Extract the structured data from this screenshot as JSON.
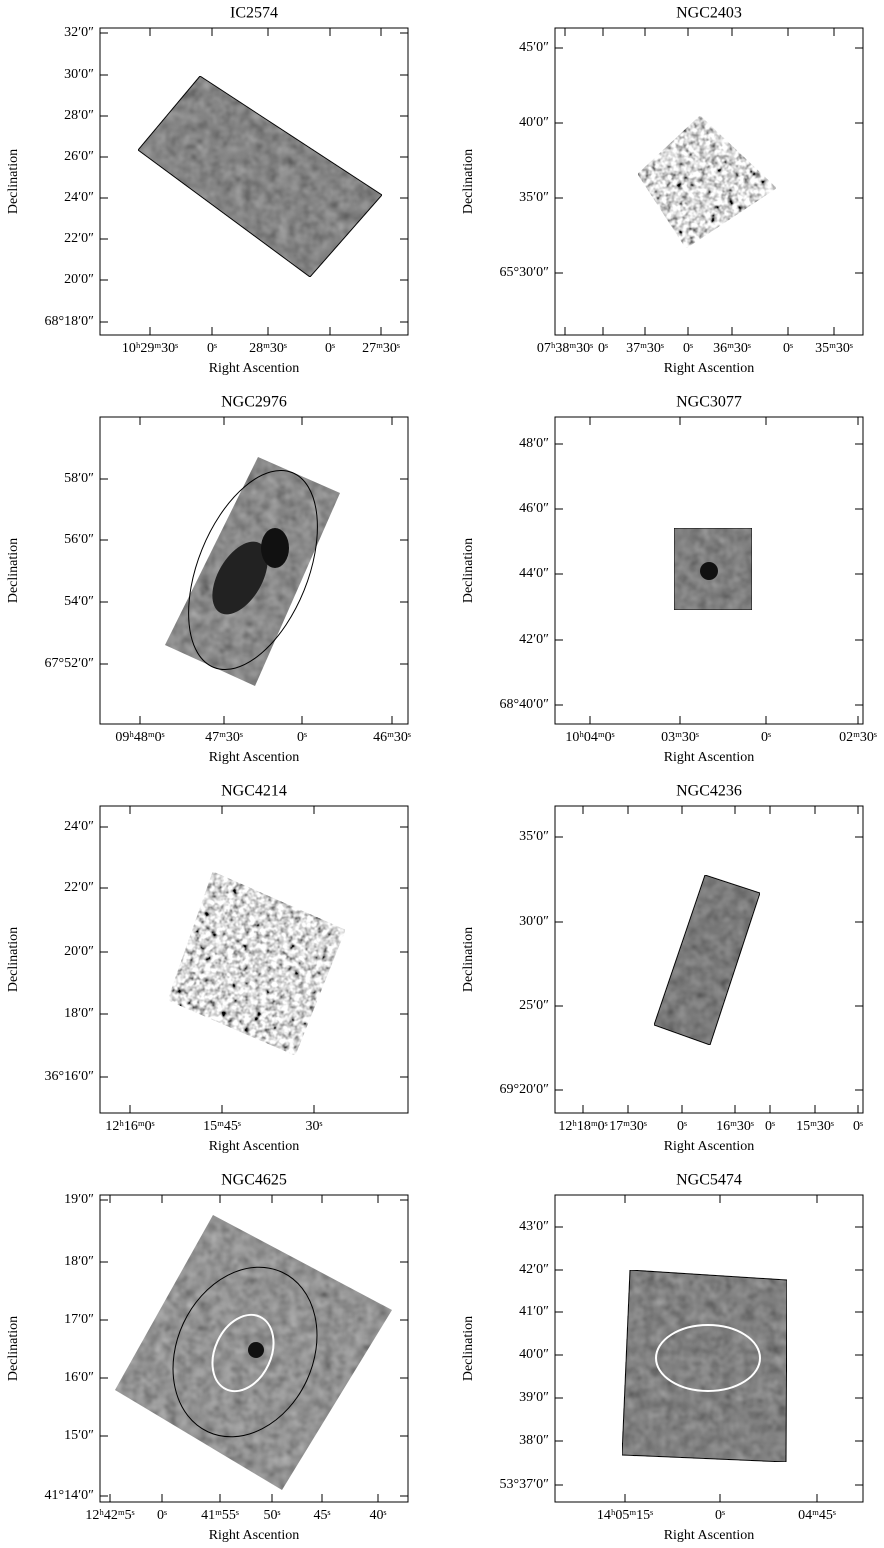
{
  "panels": [
    {
      "title": "IC2574",
      "xlabel": "Right Ascention",
      "ylabel": "Declination",
      "xtick_labels": [
        "10ʰ29ᵐ30ˢ",
        "0ˢ",
        "28ᵐ30ˢ",
        "0ˢ",
        "27ᵐ30ˢ"
      ],
      "ytick_labels": [
        "32′0″",
        "30′0″",
        "28′0″",
        "26′0″",
        "24′0″",
        "22′0″",
        "20′0″",
        "68°18′0″"
      ]
    },
    {
      "title": "NGC2403",
      "xlabel": "Right Ascention",
      "ylabel": "Declination",
      "xtick_labels": [
        "07ʰ38ᵐ30ˢ",
        "0ˢ",
        "37ᵐ30ˢ",
        "0ˢ",
        "36ᵐ30ˢ",
        "0ˢ",
        "35ᵐ30ˢ"
      ],
      "ytick_labels": [
        "45′0″",
        "40′0″",
        "35′0″",
        "65°30′0″"
      ]
    },
    {
      "title": "NGC2976",
      "xlabel": "Right Ascention",
      "ylabel": "Declination",
      "xtick_labels": [
        "09ʰ48ᵐ0ˢ",
        "47ᵐ30ˢ",
        "0ˢ",
        "46ᵐ30ˢ"
      ],
      "ytick_labels": [
        "58′0″",
        "56′0″",
        "54′0″",
        "67°52′0″"
      ]
    },
    {
      "title": "NGC3077",
      "xlabel": "Right Ascention",
      "ylabel": "Declination",
      "xtick_labels": [
        "10ʰ04ᵐ0ˢ",
        "03ᵐ30ˢ",
        "0ˢ",
        "02ᵐ30ˢ"
      ],
      "ytick_labels": [
        "48′0″",
        "46′0″",
        "44′0″",
        "42′0″",
        "68°40′0″"
      ]
    },
    {
      "title": "NGC4214",
      "xlabel": "Right Ascention",
      "ylabel": "Declination",
      "xtick_labels": [
        "12ʰ16ᵐ0ˢ",
        "15ᵐ45ˢ",
        "30ˢ"
      ],
      "ytick_labels": [
        "24′0″",
        "22′0″",
        "20′0″",
        "18′0″",
        "36°16′0″"
      ]
    },
    {
      "title": "NGC4236",
      "xlabel": "Right Ascention",
      "ylabel": "Declination",
      "xtick_labels": [
        "12ʰ18ᵐ0ˢ",
        "17ᵐ30ˢ",
        "0ˢ",
        "16ᵐ30ˢ",
        "0ˢ",
        "15ᵐ30ˢ",
        "0ˢ"
      ],
      "ytick_labels": [
        "35′0″",
        "30′0″",
        "25′0″",
        "69°20′0″"
      ]
    },
    {
      "title": "NGC4625",
      "xlabel": "Right Ascention",
      "ylabel": "Declination",
      "xtick_labels": [
        "12ʰ42ᵐ5ˢ",
        "0ˢ",
        "41ᵐ55ˢ",
        "50ˢ",
        "45ˢ",
        "40ˢ"
      ],
      "ytick_labels": [
        "19′0″",
        "18′0″",
        "17′0″",
        "16′0″",
        "15′0″",
        "41°14′0″"
      ]
    },
    {
      "title": "NGC5474",
      "xlabel": "Right Ascention",
      "ylabel": "Declination",
      "xtick_labels": [
        "14ʰ05ᵐ15ˢ",
        "0ˢ",
        "04ᵐ45ˢ"
      ],
      "ytick_labels": [
        "43′0″",
        "42′0″",
        "41′0″",
        "40′0″",
        "39′0″",
        "38′0″",
        "53°37′0″"
      ]
    }
  ]
}
